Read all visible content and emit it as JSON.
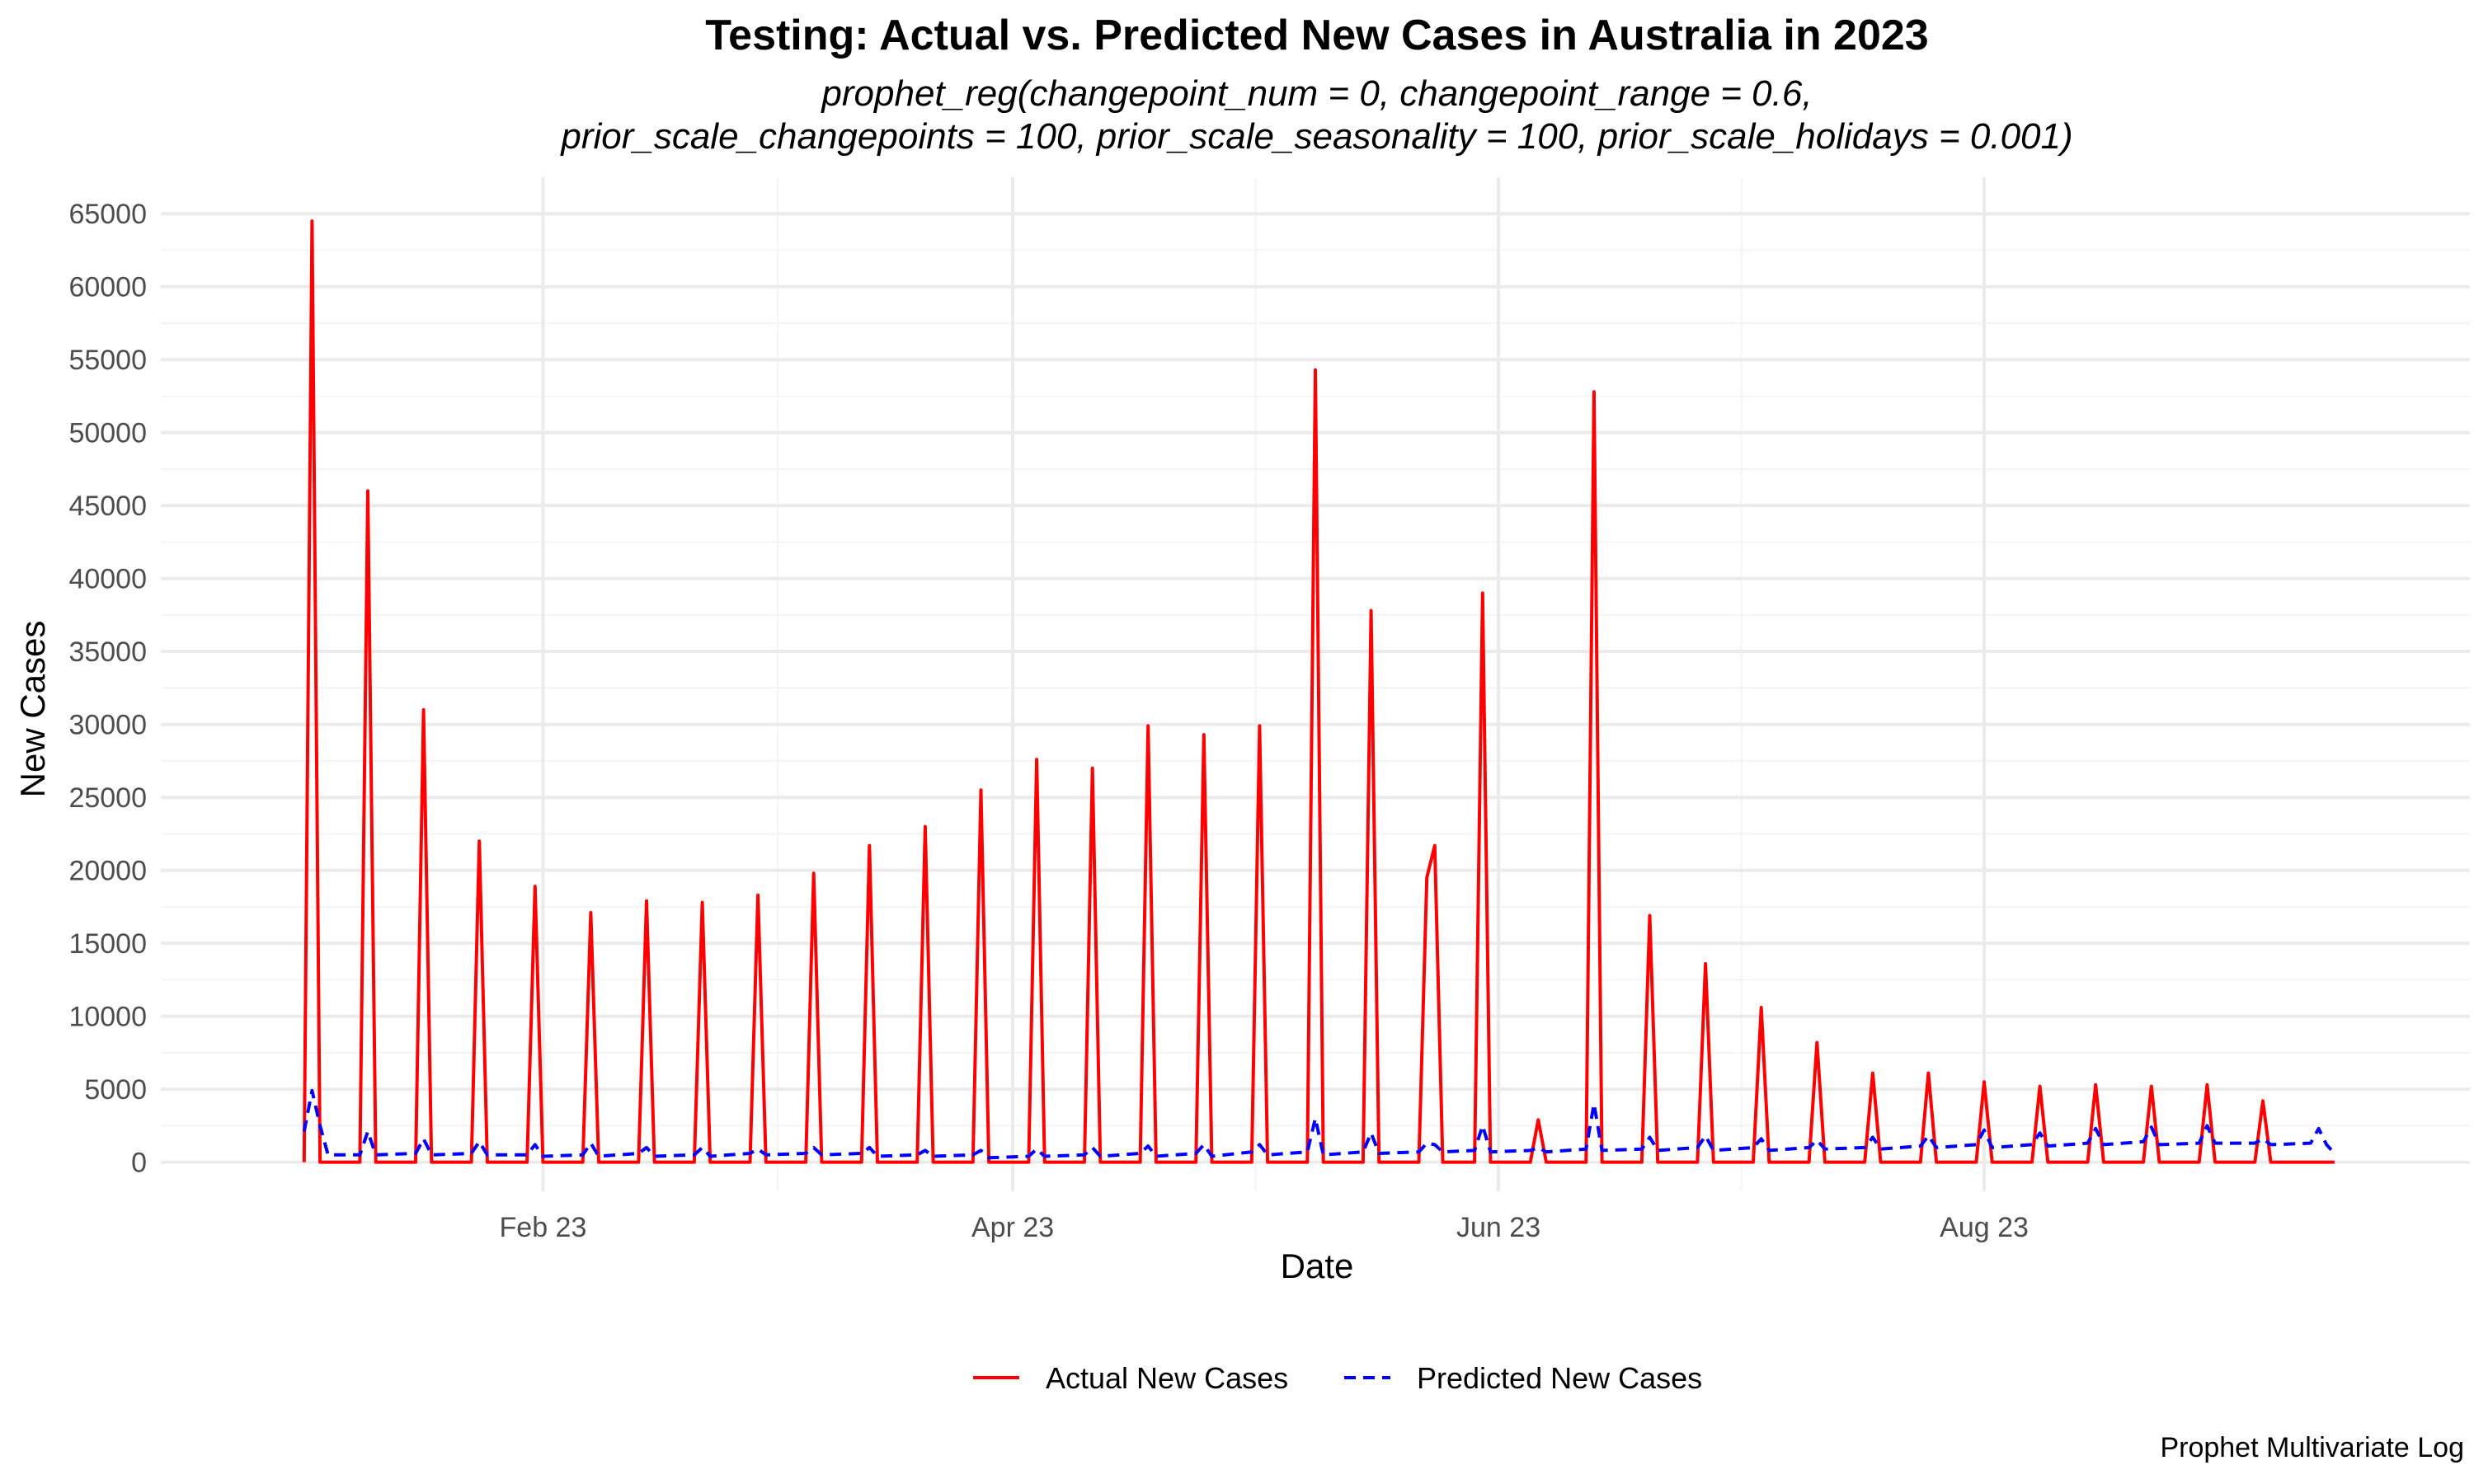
{
  "chart_data": {
    "type": "line",
    "title": "Testing: Actual vs. Predicted New Cases in Australia in 2023",
    "subtitle_lines": [
      "prophet_reg(changepoint_num = 0, changepoint_range = 0.6,",
      "prior_scale_changepoints = 100, prior_scale_seasonality = 100, prior_scale_holidays = 0.001)"
    ],
    "xlabel": "Date",
    "ylabel": "New Cases",
    "caption": "Prophet Multivariate Log",
    "xlim": [
      "2022-12-15",
      "2023-10-01"
    ],
    "ylim": [
      -2000,
      67500
    ],
    "x_ticks": [
      {
        "date": "2023-02-01",
        "label": "Feb 23"
      },
      {
        "date": "2023-04-01",
        "label": "Apr 23"
      },
      {
        "date": "2023-06-01",
        "label": "Jun 23"
      },
      {
        "date": "2023-08-01",
        "label": "Aug 23"
      }
    ],
    "y_ticks": [
      0,
      5000,
      10000,
      15000,
      20000,
      25000,
      30000,
      35000,
      40000,
      45000,
      50000,
      55000,
      60000,
      65000
    ],
    "grid": true,
    "legend_position": "bottom",
    "colors": {
      "actual": "#ff0000",
      "predicted": "#0000ff"
    },
    "series": [
      {
        "name": "Actual New Cases",
        "color": "#ff0000",
        "style": "solid",
        "points": [
          [
            "2023-01-02",
            0
          ],
          [
            "2023-01-03",
            64500
          ],
          [
            "2023-01-04",
            0
          ],
          [
            "2023-01-09",
            0
          ],
          [
            "2023-01-10",
            46000
          ],
          [
            "2023-01-11",
            0
          ],
          [
            "2023-01-16",
            0
          ],
          [
            "2023-01-17",
            31000
          ],
          [
            "2023-01-18",
            0
          ],
          [
            "2023-01-23",
            0
          ],
          [
            "2023-01-24",
            22000
          ],
          [
            "2023-01-25",
            0
          ],
          [
            "2023-01-30",
            0
          ],
          [
            "2023-01-31",
            18900
          ],
          [
            "2023-02-01",
            0
          ],
          [
            "2023-02-06",
            0
          ],
          [
            "2023-02-07",
            17100
          ],
          [
            "2023-02-08",
            0
          ],
          [
            "2023-02-13",
            0
          ],
          [
            "2023-02-14",
            17900
          ],
          [
            "2023-02-15",
            0
          ],
          [
            "2023-02-20",
            0
          ],
          [
            "2023-02-21",
            17800
          ],
          [
            "2023-02-22",
            0
          ],
          [
            "2023-02-27",
            0
          ],
          [
            "2023-02-28",
            18300
          ],
          [
            "2023-03-01",
            0
          ],
          [
            "2023-03-06",
            0
          ],
          [
            "2023-03-07",
            19800
          ],
          [
            "2023-03-08",
            0
          ],
          [
            "2023-03-13",
            0
          ],
          [
            "2023-03-14",
            21700
          ],
          [
            "2023-03-15",
            0
          ],
          [
            "2023-03-20",
            0
          ],
          [
            "2023-03-21",
            23000
          ],
          [
            "2023-03-22",
            0
          ],
          [
            "2023-03-27",
            0
          ],
          [
            "2023-03-28",
            25500
          ],
          [
            "2023-03-29",
            0
          ],
          [
            "2023-04-03",
            0
          ],
          [
            "2023-04-04",
            27600
          ],
          [
            "2023-04-05",
            0
          ],
          [
            "2023-04-10",
            0
          ],
          [
            "2023-04-11",
            27000
          ],
          [
            "2023-04-12",
            0
          ],
          [
            "2023-04-17",
            0
          ],
          [
            "2023-04-18",
            29900
          ],
          [
            "2023-04-19",
            0
          ],
          [
            "2023-04-24",
            0
          ],
          [
            "2023-04-25",
            29300
          ],
          [
            "2023-04-26",
            0
          ],
          [
            "2023-05-01",
            0
          ],
          [
            "2023-05-02",
            29900
          ],
          [
            "2023-05-03",
            0
          ],
          [
            "2023-05-08",
            0
          ],
          [
            "2023-05-09",
            54300
          ],
          [
            "2023-05-10",
            0
          ],
          [
            "2023-05-15",
            0
          ],
          [
            "2023-05-16",
            37800
          ],
          [
            "2023-05-17",
            0
          ],
          [
            "2023-05-22",
            0
          ],
          [
            "2023-05-23",
            19500
          ],
          [
            "2023-05-24",
            21700
          ],
          [
            "2023-05-25",
            0
          ],
          [
            "2023-05-29",
            0
          ],
          [
            "2023-05-30",
            39000
          ],
          [
            "2023-05-31",
            0
          ],
          [
            "2023-06-05",
            0
          ],
          [
            "2023-06-06",
            2900
          ],
          [
            "2023-06-07",
            0
          ],
          [
            "2023-06-12",
            0
          ],
          [
            "2023-06-13",
            52800
          ],
          [
            "2023-06-14",
            0
          ],
          [
            "2023-06-19",
            0
          ],
          [
            "2023-06-20",
            16900
          ],
          [
            "2023-06-21",
            0
          ],
          [
            "2023-06-26",
            0
          ],
          [
            "2023-06-27",
            13600
          ],
          [
            "2023-06-28",
            0
          ],
          [
            "2023-07-03",
            0
          ],
          [
            "2023-07-04",
            10600
          ],
          [
            "2023-07-05",
            0
          ],
          [
            "2023-07-10",
            0
          ],
          [
            "2023-07-11",
            8200
          ],
          [
            "2023-07-12",
            0
          ],
          [
            "2023-07-17",
            0
          ],
          [
            "2023-07-18",
            6100
          ],
          [
            "2023-07-19",
            0
          ],
          [
            "2023-07-24",
            0
          ],
          [
            "2023-07-25",
            6100
          ],
          [
            "2023-07-26",
            0
          ],
          [
            "2023-07-31",
            0
          ],
          [
            "2023-08-01",
            5500
          ],
          [
            "2023-08-02",
            0
          ],
          [
            "2023-08-07",
            0
          ],
          [
            "2023-08-08",
            5200
          ],
          [
            "2023-08-09",
            0
          ],
          [
            "2023-08-14",
            0
          ],
          [
            "2023-08-15",
            5300
          ],
          [
            "2023-08-16",
            0
          ],
          [
            "2023-08-21",
            0
          ],
          [
            "2023-08-22",
            5200
          ],
          [
            "2023-08-23",
            0
          ],
          [
            "2023-08-28",
            0
          ],
          [
            "2023-08-29",
            5300
          ],
          [
            "2023-08-30",
            0
          ],
          [
            "2023-09-04",
            0
          ],
          [
            "2023-09-05",
            4200
          ],
          [
            "2023-09-06",
            0
          ],
          [
            "2023-09-14",
            0
          ]
        ]
      },
      {
        "name": "Predicted New Cases",
        "color": "#0000ff",
        "style": "dashed",
        "points": [
          [
            "2023-01-02",
            2100
          ],
          [
            "2023-01-03",
            4900
          ],
          [
            "2023-01-04",
            2500
          ],
          [
            "2023-01-05",
            500
          ],
          [
            "2023-01-09",
            500
          ],
          [
            "2023-01-10",
            2100
          ],
          [
            "2023-01-11",
            500
          ],
          [
            "2023-01-16",
            600
          ],
          [
            "2023-01-17",
            1600
          ],
          [
            "2023-01-18",
            500
          ],
          [
            "2023-01-23",
            600
          ],
          [
            "2023-01-24",
            1400
          ],
          [
            "2023-01-25",
            500
          ],
          [
            "2023-01-30",
            500
          ],
          [
            "2023-01-31",
            1200
          ],
          [
            "2023-02-01",
            400
          ],
          [
            "2023-02-06",
            500
          ],
          [
            "2023-02-07",
            1300
          ],
          [
            "2023-02-08",
            400
          ],
          [
            "2023-02-13",
            600
          ],
          [
            "2023-02-14",
            1000
          ],
          [
            "2023-02-15",
            400
          ],
          [
            "2023-02-20",
            500
          ],
          [
            "2023-02-21",
            1000
          ],
          [
            "2023-02-22",
            400
          ],
          [
            "2023-02-27",
            600
          ],
          [
            "2023-02-28",
            900
          ],
          [
            "2023-03-01",
            500
          ],
          [
            "2023-03-06",
            600
          ],
          [
            "2023-03-07",
            1000
          ],
          [
            "2023-03-08",
            500
          ],
          [
            "2023-03-13",
            600
          ],
          [
            "2023-03-14",
            1000
          ],
          [
            "2023-03-15",
            400
          ],
          [
            "2023-03-20",
            500
          ],
          [
            "2023-03-21",
            800
          ],
          [
            "2023-03-22",
            400
          ],
          [
            "2023-03-27",
            500
          ],
          [
            "2023-03-28",
            800
          ],
          [
            "2023-03-29",
            300
          ],
          [
            "2023-04-03",
            400
          ],
          [
            "2023-04-04",
            900
          ],
          [
            "2023-04-05",
            400
          ],
          [
            "2023-04-10",
            500
          ],
          [
            "2023-04-11",
            1000
          ],
          [
            "2023-04-12",
            400
          ],
          [
            "2023-04-17",
            600
          ],
          [
            "2023-04-18",
            1100
          ],
          [
            "2023-04-19",
            400
          ],
          [
            "2023-04-24",
            600
          ],
          [
            "2023-04-25",
            1200
          ],
          [
            "2023-04-26",
            400
          ],
          [
            "2023-05-01",
            700
          ],
          [
            "2023-05-02",
            1200
          ],
          [
            "2023-05-03",
            500
          ],
          [
            "2023-05-08",
            700
          ],
          [
            "2023-05-09",
            3000
          ],
          [
            "2023-05-10",
            500
          ],
          [
            "2023-05-15",
            700
          ],
          [
            "2023-05-16",
            2000
          ],
          [
            "2023-05-17",
            600
          ],
          [
            "2023-05-22",
            700
          ],
          [
            "2023-05-23",
            1300
          ],
          [
            "2023-05-24",
            1200
          ],
          [
            "2023-05-25",
            700
          ],
          [
            "2023-05-29",
            800
          ],
          [
            "2023-05-30",
            2500
          ],
          [
            "2023-05-31",
            700
          ],
          [
            "2023-06-05",
            800
          ],
          [
            "2023-06-06",
            1000
          ],
          [
            "2023-06-07",
            700
          ],
          [
            "2023-06-12",
            900
          ],
          [
            "2023-06-13",
            4000
          ],
          [
            "2023-06-14",
            800
          ],
          [
            "2023-06-19",
            900
          ],
          [
            "2023-06-20",
            1700
          ],
          [
            "2023-06-21",
            800
          ],
          [
            "2023-06-26",
            1000
          ],
          [
            "2023-06-27",
            1800
          ],
          [
            "2023-06-28",
            800
          ],
          [
            "2023-07-03",
            1000
          ],
          [
            "2023-07-04",
            1600
          ],
          [
            "2023-07-05",
            800
          ],
          [
            "2023-07-10",
            1000
          ],
          [
            "2023-07-11",
            1500
          ],
          [
            "2023-07-12",
            900
          ],
          [
            "2023-07-17",
            1000
          ],
          [
            "2023-07-18",
            1700
          ],
          [
            "2023-07-19",
            900
          ],
          [
            "2023-07-24",
            1100
          ],
          [
            "2023-07-25",
            1800
          ],
          [
            "2023-07-26",
            1000
          ],
          [
            "2023-07-31",
            1200
          ],
          [
            "2023-08-01",
            2200
          ],
          [
            "2023-08-02",
            1000
          ],
          [
            "2023-08-07",
            1200
          ],
          [
            "2023-08-08",
            2000
          ],
          [
            "2023-08-09",
            1100
          ],
          [
            "2023-08-14",
            1300
          ],
          [
            "2023-08-15",
            2300
          ],
          [
            "2023-08-16",
            1200
          ],
          [
            "2023-08-21",
            1400
          ],
          [
            "2023-08-22",
            2400
          ],
          [
            "2023-08-23",
            1200
          ],
          [
            "2023-08-28",
            1300
          ],
          [
            "2023-08-29",
            2500
          ],
          [
            "2023-08-30",
            1300
          ],
          [
            "2023-09-04",
            1300
          ],
          [
            "2023-09-05",
            1600
          ],
          [
            "2023-09-06",
            1200
          ],
          [
            "2023-09-11",
            1300
          ],
          [
            "2023-09-12",
            2300
          ],
          [
            "2023-09-13",
            1200
          ],
          [
            "2023-09-14",
            600
          ]
        ]
      }
    ]
  }
}
